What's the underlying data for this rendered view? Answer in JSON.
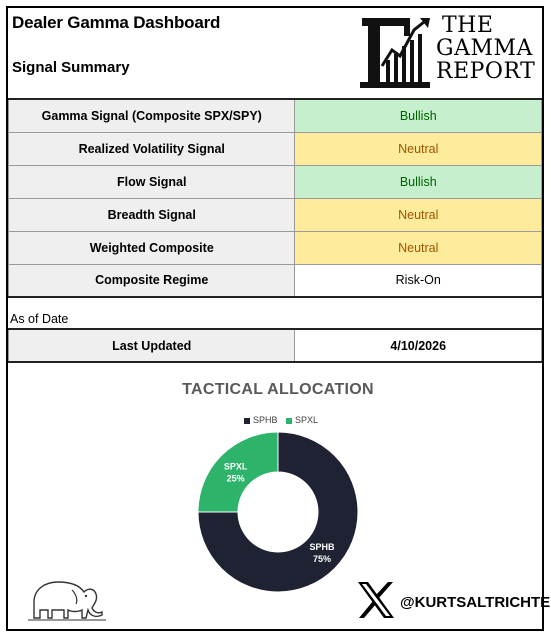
{
  "header": {
    "title": "Dealer Gamma Dashboard",
    "subtitle": "Signal Summary"
  },
  "logo": {
    "line1": "THE",
    "line2": "GAMMA",
    "line3": "REPORT"
  },
  "signals": [
    {
      "label": "Gamma Signal (Composite SPX/SPY)",
      "value": "Bullish",
      "status": "bullish"
    },
    {
      "label": "Realized Volatility Signal",
      "value": "Neutral",
      "status": "neutral"
    },
    {
      "label": "Flow Signal",
      "value": "Bullish",
      "status": "bullish"
    },
    {
      "label": "Breadth Signal",
      "value": "Neutral",
      "status": "neutral"
    },
    {
      "label": "Weighted Composite",
      "value": "Neutral",
      "status": "neutral"
    },
    {
      "label": "Composite Regime",
      "value": "Risk-On",
      "status": "plain"
    }
  ],
  "as_of": {
    "section_label": "As of Date",
    "label": "Last Updated",
    "value": "4/10/2026"
  },
  "colors": {
    "bullish_bg": "#c6efce",
    "bullish_text": "#006100",
    "neutral_bg": "#ffeb9c",
    "neutral_text": "#9c5700",
    "sphb": "#1f2233",
    "spxl": "#2db36a"
  },
  "chart_data": {
    "type": "pie",
    "title": "TACTICAL ALLOCATION",
    "legend_position": "top",
    "categories": [
      "SPHB",
      "SPXL"
    ],
    "values": [
      75,
      25
    ],
    "data_labels": [
      "SPHB\n75%",
      "SPXL\n25%"
    ],
    "slice_labels": [
      {
        "name": "SPHB",
        "pct": "75%"
      },
      {
        "name": "SPXL",
        "pct": "25%"
      }
    ],
    "colors": [
      "#1f2233",
      "#2db36a"
    ]
  },
  "footer": {
    "handle": "@KURTSALTRICHTER",
    "elephant_icon": "elephant-icon",
    "x_icon": "x-logo-icon"
  }
}
